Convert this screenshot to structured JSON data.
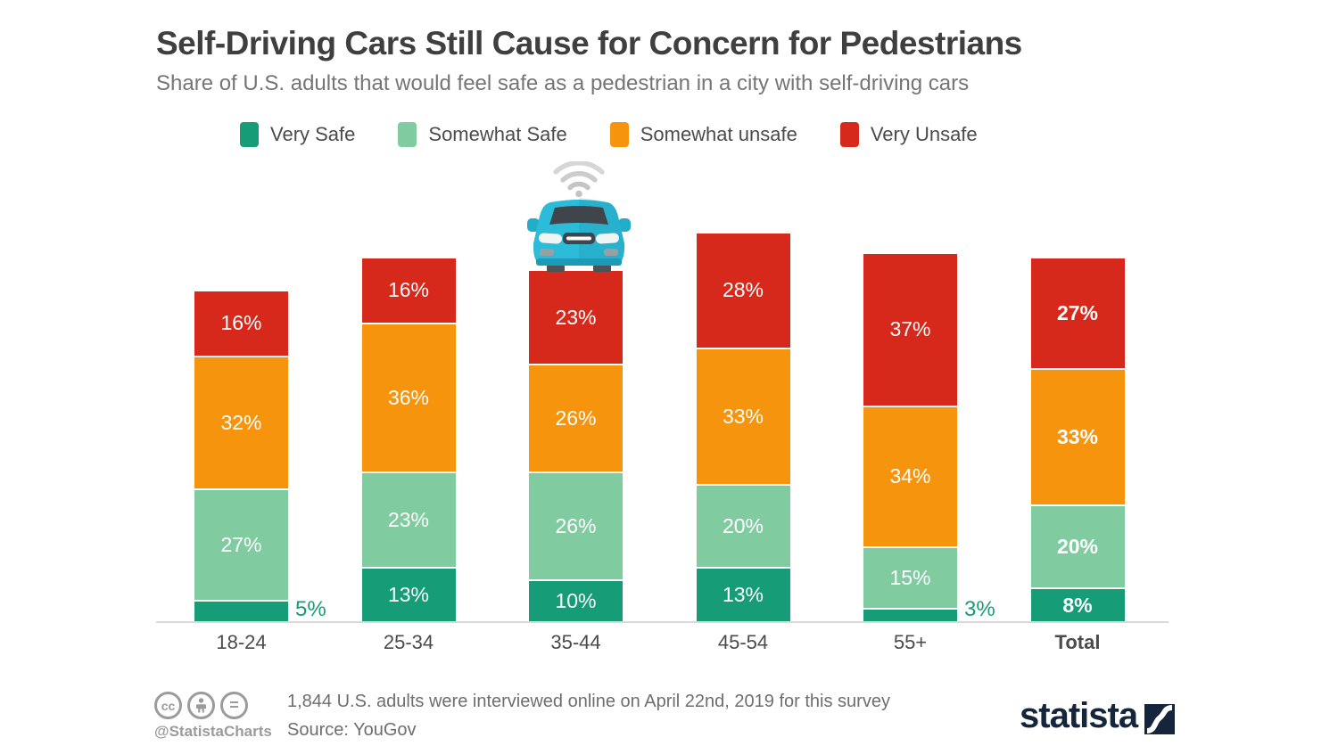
{
  "header": {
    "title": "Self-Driving Cars Still Cause for Concern for Pedestrians",
    "subtitle": "Share of U.S. adults that would feel safe as a pedestrian in a city with self-driving cars"
  },
  "chart_data": {
    "type": "bar",
    "stacked": true,
    "orientation": "vertical",
    "categories": [
      "18-24",
      "25-34",
      "35-44",
      "45-54",
      "55+",
      "Total"
    ],
    "series": [
      {
        "name": "Very Safe",
        "color": "#169c76",
        "values": [
          5,
          13,
          10,
          13,
          3,
          8
        ]
      },
      {
        "name": "Somewhat Safe",
        "color": "#80cba0",
        "values": [
          27,
          23,
          26,
          20,
          15,
          20
        ]
      },
      {
        "name": "Somewhat unsafe",
        "color": "#f7940d",
        "values": [
          32,
          36,
          26,
          33,
          34,
          33
        ]
      },
      {
        "name": "Very Unsafe",
        "color": "#d7281c",
        "values": [
          16,
          16,
          23,
          28,
          37,
          27
        ]
      }
    ],
    "value_suffix": "%",
    "ylim": [
      0,
      100
    ],
    "grid": false,
    "legend_position": "top",
    "emphasized_category": "Total",
    "annotations": [
      "self-driving-car icon with wifi signal sitting on top of the 35-44 bar"
    ]
  },
  "icons": {
    "car": "self-driving-car-icon",
    "wifi": "wifi-signal-icon",
    "cc": "cc-icon",
    "attribution": "attribution-person-icon",
    "equals": "no-derivatives-icon",
    "brand_mark": "statista-logo-mark"
  },
  "colors": {
    "car_body": "#2cbcd9",
    "axis_line": "#d9d9d9",
    "brand_navy": "#15263c",
    "outside_label_green": "#169c76"
  },
  "footer": {
    "handle": "@StatistaCharts",
    "note": "1,844 U.S. adults were interviewed online on April 22nd, 2019 for this survey",
    "source": "Source: YouGov",
    "brand": "statista"
  }
}
